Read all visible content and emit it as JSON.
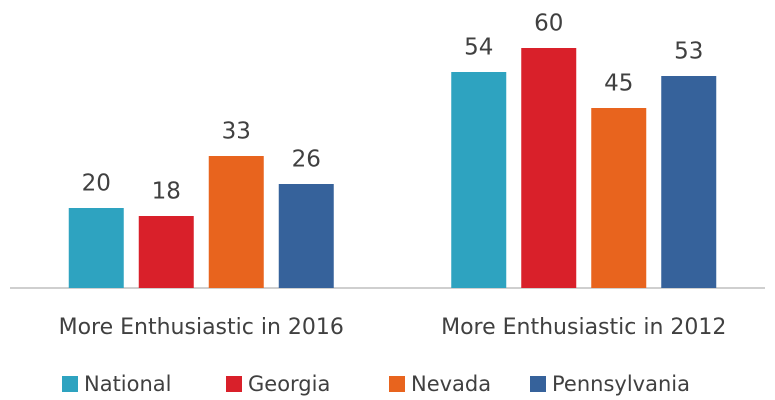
{
  "chart_data": {
    "type": "bar",
    "categories": [
      "More Enthusiastic in 2016",
      "More Enthusiastic in 2012"
    ],
    "series": [
      {
        "name": "National",
        "color": "#2ea3c0",
        "values": [
          20,
          54
        ]
      },
      {
        "name": "Georgia",
        "color": "#d9202a",
        "values": [
          18,
          60
        ]
      },
      {
        "name": "Nevada",
        "color": "#e8641e",
        "values": [
          33,
          45
        ]
      },
      {
        "name": "Pennsylvania",
        "color": "#36629b",
        "values": [
          26,
          53
        ]
      }
    ],
    "ylim": [
      0,
      70
    ],
    "legend": "bottom"
  }
}
